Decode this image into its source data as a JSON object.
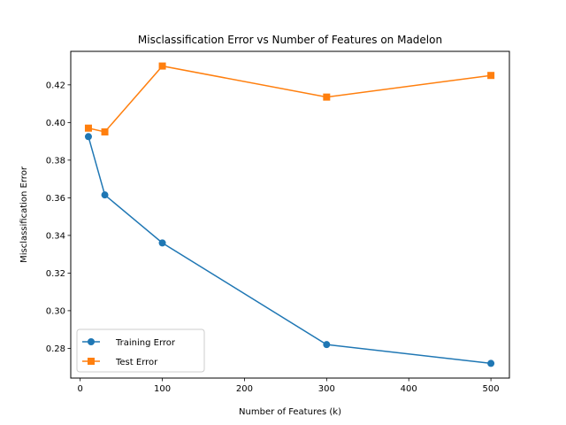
{
  "chart_data": {
    "type": "line",
    "title": "Misclassification Error vs Number of Features on Madelon",
    "xlabel": "Number of Features (k)",
    "ylabel": "Misclassification Error",
    "xlim": [
      -11.5,
      522.5
    ],
    "ylim": [
      0.2642,
      0.4378
    ],
    "xticks": [
      0,
      100,
      200,
      300,
      400,
      500
    ],
    "xtick_labels": [
      "0",
      "100",
      "200",
      "300",
      "400",
      "500"
    ],
    "yticks": [
      0.28,
      0.3,
      0.32,
      0.34,
      0.36,
      0.38,
      0.4,
      0.42
    ],
    "ytick_labels": [
      "0.28",
      "0.30",
      "0.32",
      "0.34",
      "0.36",
      "0.38",
      "0.40",
      "0.42"
    ],
    "grid": false,
    "legend_position": "lower-left",
    "x": [
      10,
      30,
      100,
      300,
      500
    ],
    "series": [
      {
        "name": "Training Error",
        "values": [
          0.3925,
          0.3615,
          0.336,
          0.282,
          0.272
        ],
        "color": "#1f77b4",
        "marker": "circle"
      },
      {
        "name": "Test Error",
        "values": [
          0.397,
          0.395,
          0.43,
          0.4135,
          0.425
        ],
        "color": "#ff7f0e",
        "marker": "square"
      }
    ]
  }
}
